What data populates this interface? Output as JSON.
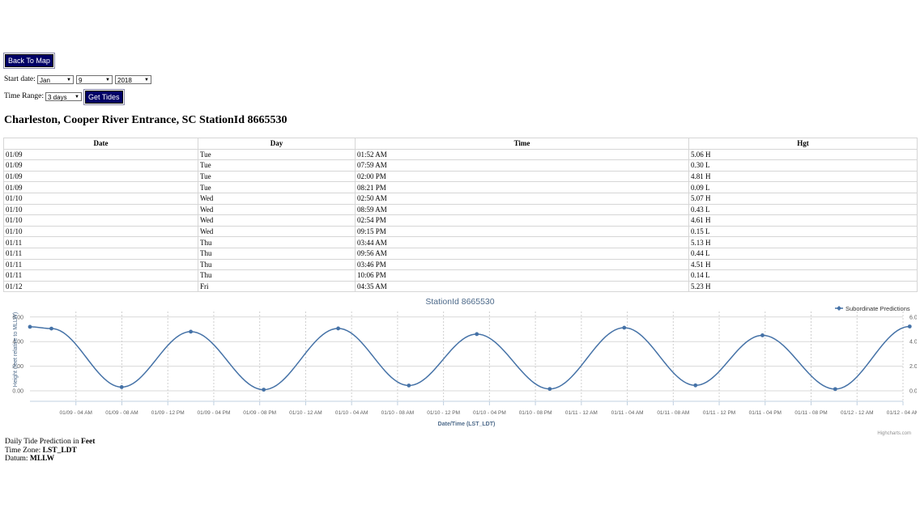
{
  "controls": {
    "back_button": "Back To Map",
    "start_date_label": "Start date:",
    "month_value": "Jan",
    "day_value": "9",
    "year_value": "2018",
    "time_range_label": "Time Range:",
    "time_range_value": "3 days",
    "get_tides_button": "Get Tides"
  },
  "station_title": "Charleston, Cooper River Entrance, SC StationId 8665530",
  "table": {
    "headers": [
      "Date",
      "Day",
      "Time",
      "Hgt"
    ],
    "rows": [
      [
        "01/09",
        "Tue",
        "01:52 AM",
        "5.06 H"
      ],
      [
        "01/09",
        "Tue",
        "07:59 AM",
        "0.30 L"
      ],
      [
        "01/09",
        "Tue",
        "02:00 PM",
        "4.81 H"
      ],
      [
        "01/09",
        "Tue",
        "08:21 PM",
        "0.09 L"
      ],
      [
        "01/10",
        "Wed",
        "02:50 AM",
        "5.07 H"
      ],
      [
        "01/10",
        "Wed",
        "08:59 AM",
        "0.43 L"
      ],
      [
        "01/10",
        "Wed",
        "02:54 PM",
        "4.61 H"
      ],
      [
        "01/10",
        "Wed",
        "09:15 PM",
        "0.15 L"
      ],
      [
        "01/11",
        "Thu",
        "03:44 AM",
        "5.13 H"
      ],
      [
        "01/11",
        "Thu",
        "09:56 AM",
        "0.44 L"
      ],
      [
        "01/11",
        "Thu",
        "03:46 PM",
        "4.51 H"
      ],
      [
        "01/11",
        "Thu",
        "10:06 PM",
        "0.14 L"
      ],
      [
        "01/12",
        "Fri",
        "04:35 AM",
        "5.23 H"
      ]
    ]
  },
  "chart_data": {
    "type": "line",
    "title": "StationId 8665530",
    "xlabel": "Date/Time (LST_LDT)",
    "ylabel": "Height (feet relative to MLLW)",
    "series": [
      {
        "name": "Subordinate Predictions",
        "color": "#4572a7",
        "points": [
          [
            "01/09 00:00",
            5.2
          ],
          [
            "01/09 01:52",
            5.06
          ],
          [
            "01/09 07:59",
            0.3
          ],
          [
            "01/09 14:00",
            4.81
          ],
          [
            "01/09 20:21",
            0.09
          ],
          [
            "01/10 02:50",
            5.07
          ],
          [
            "01/10 08:59",
            0.43
          ],
          [
            "01/10 14:54",
            4.61
          ],
          [
            "01/10 21:15",
            0.15
          ],
          [
            "01/11 03:44",
            5.13
          ],
          [
            "01/11 09:56",
            0.44
          ],
          [
            "01/11 15:46",
            4.51
          ],
          [
            "01/11 22:06",
            0.14
          ],
          [
            "01/12 04:35",
            5.23
          ]
        ]
      }
    ],
    "x_tick_labels": [
      "01/09 - 04 AM",
      "01/09 - 08 AM",
      "01/09 - 12 PM",
      "01/09 - 04 PM",
      "01/09 - 08 PM",
      "01/10 - 12 AM",
      "01/10 - 04 AM",
      "01/10 - 08 AM",
      "01/10 - 12 PM",
      "01/10 - 04 PM",
      "01/10 - 08 PM",
      "01/11 - 12 AM",
      "01/11 - 04 AM",
      "01/11 - 08 AM",
      "01/11 - 12 PM",
      "01/11 - 04 PM",
      "01/11 - 08 PM",
      "01/12 - 12 AM",
      "01/12 - 04 AM"
    ],
    "y_tick_labels": [
      "6.00",
      "4.00",
      "2.00",
      "0.00"
    ],
    "ylim": [
      -1,
      6
    ],
    "grid": true,
    "legend_position": "top-right",
    "credits": "Highcharts.com"
  },
  "footer": {
    "line1_prefix": "Daily Tide Prediction in ",
    "line1_unit": "Feet",
    "line2_prefix": "Time Zone: ",
    "line2_value": "LST_LDT",
    "line3_prefix": "Datum: ",
    "line3_value": "MLLW"
  }
}
